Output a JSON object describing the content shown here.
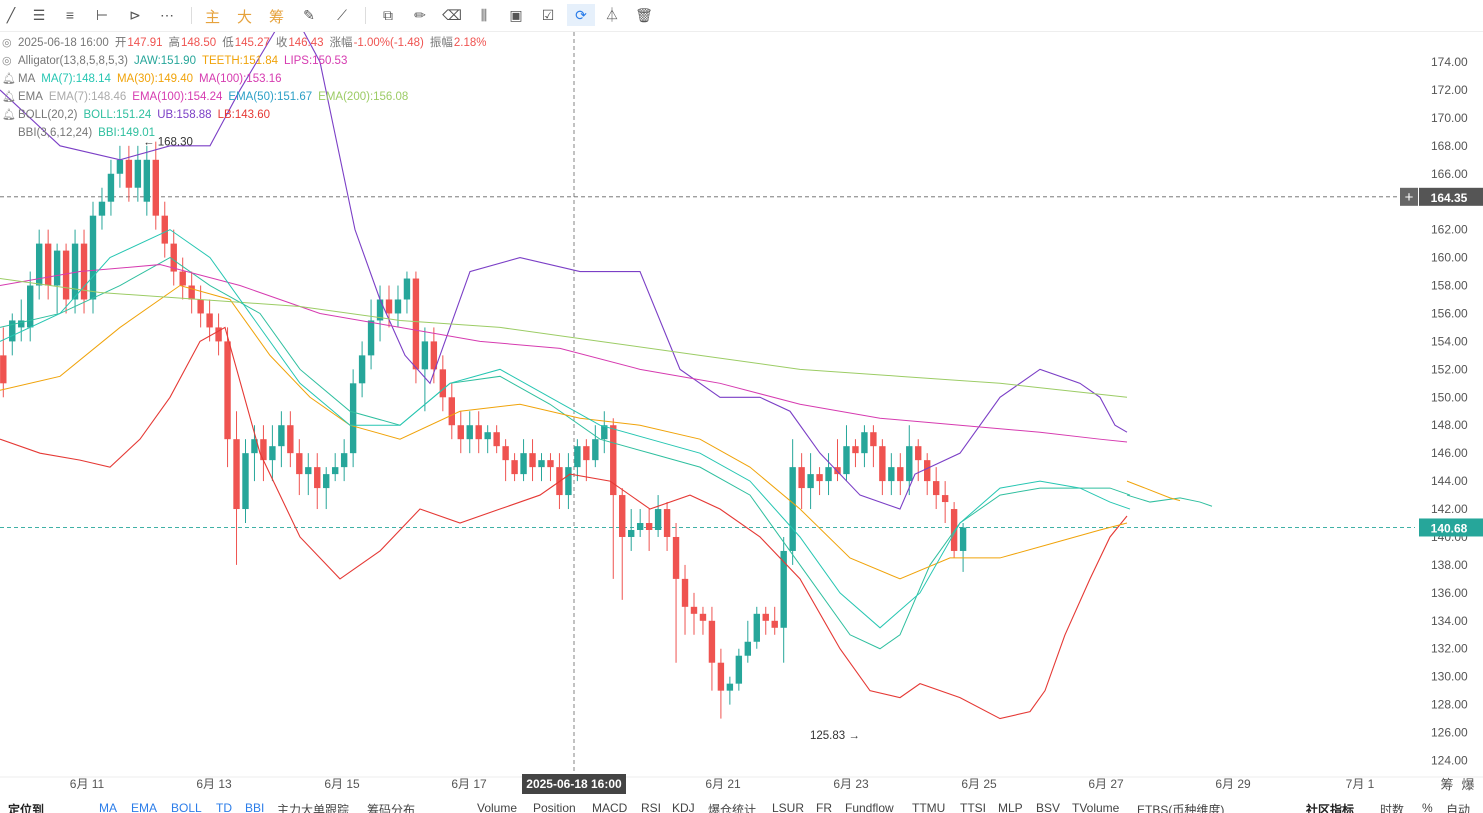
{
  "toolbar": {
    "icons": [
      "trend-line-icon",
      "parallel-lines-icon",
      "horizontal-lines-icon",
      "horizontal-ray-icon",
      "fib-fan-icon",
      "more-icon",
      "brush-icon",
      "measure-icon",
      "bars-pattern-icon",
      "calendar-range-icon",
      "note-icon",
      "magnet-icon",
      "filter-icon",
      "trash-icon"
    ],
    "labels_cn": [
      "主",
      "大",
      "筹"
    ]
  },
  "legend": {
    "ohlc": {
      "time": "2025-06-18 16:00",
      "open_label": "开",
      "open": "147.91",
      "high_label": "高",
      "high": "148.50",
      "low_label": "低",
      "low": "145.27",
      "close_label": "收",
      "close": "146.43",
      "chg_label": "涨幅",
      "chg": "-1.00%(-1.48)",
      "amp_label": "振幅",
      "amp": "2.18%"
    },
    "alligator": {
      "name": "Alligator(13,8,5,8,5,3)",
      "jaw": "JAW:151.90",
      "teeth": "TEETH:151.84",
      "lips": "LIPS:150.53"
    },
    "ma": {
      "name": "MA",
      "ma7": "MA(7):148.14",
      "ma30": "MA(30):149.40",
      "ma100": "MA(100):153.16"
    },
    "ema": {
      "name": "EMA",
      "ema7": "EMA(7):148.46",
      "ema100": "EMA(100):154.24",
      "ema50": "EMA(50):151.67",
      "ema200": "EMA(200):156.08"
    },
    "boll": {
      "name": "BOLL(20,2)",
      "mid": "BOLL:151.24",
      "ub": "UB:158.88",
      "lb": "LB:143.60"
    },
    "bbi": {
      "name": "BBI(3,6,12,24)",
      "val": "BBI:149.01"
    }
  },
  "price_axis": [
    "174.00",
    "172.00",
    "170.00",
    "168.00",
    "166.00",
    "164.00",
    "162.00",
    "160.00",
    "158.00",
    "156.00",
    "154.00",
    "152.00",
    "150.00",
    "148.00",
    "146.00",
    "144.00",
    "142.00",
    "140.00",
    "138.00",
    "136.00",
    "134.00",
    "132.00",
    "130.00",
    "128.00",
    "126.00",
    "124.00"
  ],
  "time_axis": [
    "6月 11",
    "6月 13",
    "6月 15",
    "6月 17",
    "6月 21",
    "6月 23",
    "6月 25",
    "6月 27",
    "6月 29",
    "7月 1"
  ],
  "crosshair": {
    "time": "2025-06-18 16:00",
    "price": "164.35"
  },
  "last_price": "140.68",
  "high_marker": "168.30",
  "low_marker": "125.83",
  "axis_corner": [
    "筹",
    "爆"
  ],
  "colors": {
    "up": "#26a69a",
    "down": "#ef5350",
    "ma7": "#26c6b2",
    "ma30": "#f0a30a",
    "ma100": "#d63bb0",
    "boll_ub": "#7b3fc6",
    "boll_lb": "#e53935",
    "ema200": "#9ccc65",
    "bbi": "#2fbf9f"
  },
  "bottom_tabs": [
    "定位到",
    "MA",
    "EMA",
    "BOLL",
    "TD",
    "BBI",
    "主力大单跟踪",
    "筹码分布",
    "Volume",
    "Position",
    "MACD",
    "RSI",
    "KDJ",
    "爆仓统计",
    "LSUR",
    "FR",
    "Fundflow",
    "TTMU",
    "TTSI",
    "MLP",
    "BSV",
    "TVolume",
    "ETBS(币种维度)",
    "社区指标",
    "时数",
    "%",
    "自动"
  ]
}
